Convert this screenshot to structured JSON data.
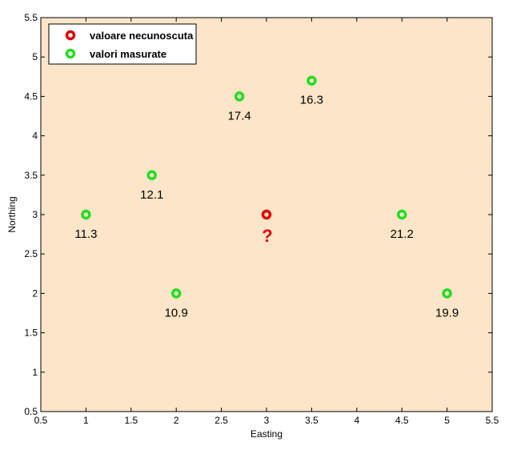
{
  "chart_data": {
    "type": "scatter",
    "title": "",
    "xlabel": "Easting",
    "ylabel": "Northing",
    "xlim": [
      0.5,
      5.5
    ],
    "ylim": [
      0.5,
      5.5
    ],
    "xticks": [
      "0.5",
      "1",
      "1.5",
      "2",
      "2.5",
      "3",
      "3.5",
      "4",
      "4.5",
      "5",
      "5.5"
    ],
    "yticks": [
      "0.5",
      "1",
      "1.5",
      "2",
      "2.5",
      "3",
      "3.5",
      "4",
      "4.5",
      "5",
      "5.5"
    ],
    "grid": false,
    "legend_position": "top-left",
    "background_color": "#fce5c8",
    "series": [
      {
        "name": "valoare necunoscuta",
        "color": "#e00000",
        "points": [
          {
            "x": 3.0,
            "y": 3.0,
            "label": "?"
          }
        ]
      },
      {
        "name": "valori masurate",
        "color": "#22dd22",
        "points": [
          {
            "x": 1.0,
            "y": 3.0,
            "label": "11.3"
          },
          {
            "x": 1.73,
            "y": 3.5,
            "label": "12.1"
          },
          {
            "x": 2.0,
            "y": 2.0,
            "label": "10.9"
          },
          {
            "x": 2.7,
            "y": 4.5,
            "label": "17.4"
          },
          {
            "x": 3.5,
            "y": 4.7,
            "label": "16.3"
          },
          {
            "x": 4.5,
            "y": 3.0,
            "label": "21.2"
          },
          {
            "x": 5.0,
            "y": 2.0,
            "label": "19.9"
          }
        ]
      }
    ]
  }
}
